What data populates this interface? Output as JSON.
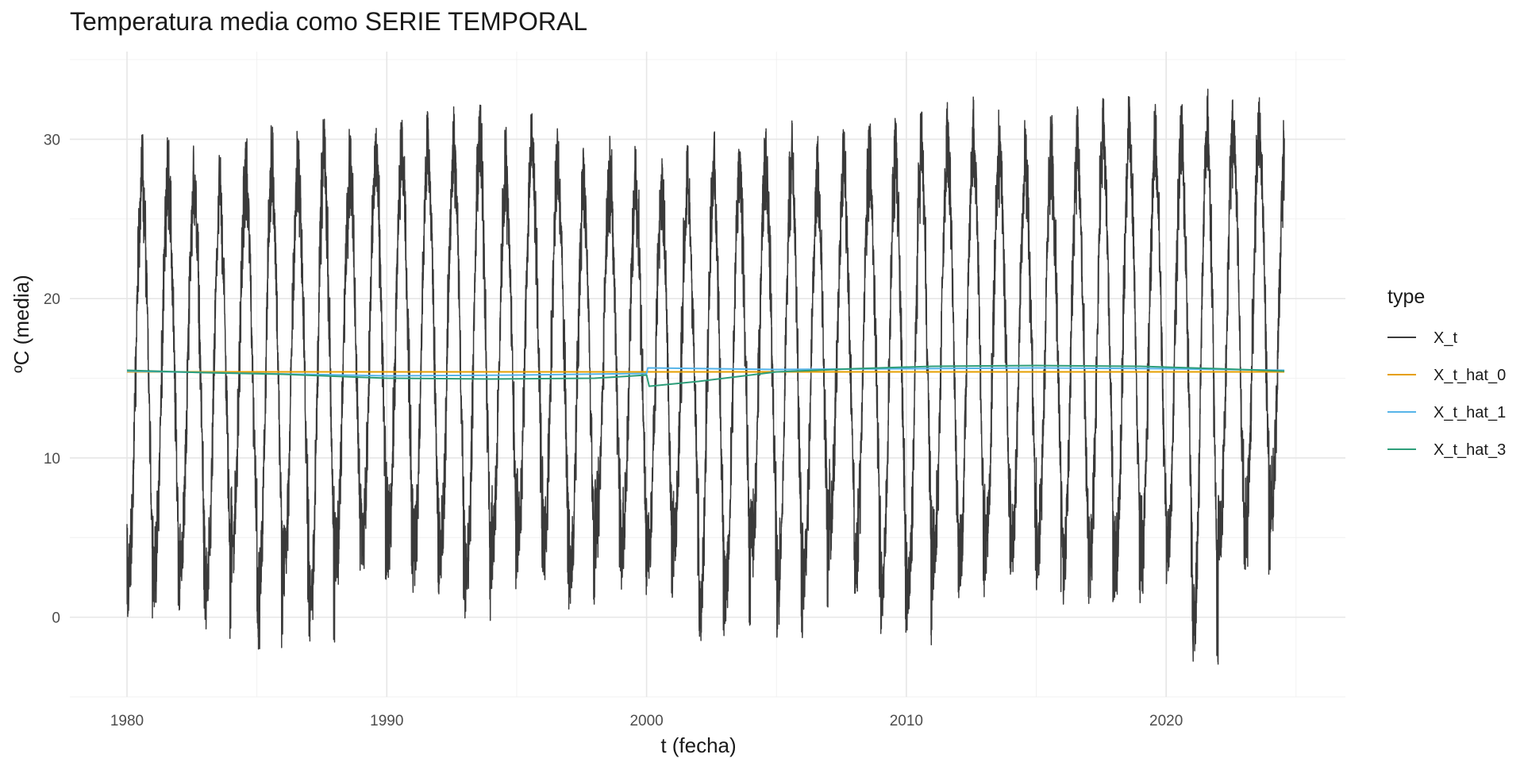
{
  "chart_data": {
    "type": "line",
    "title": "Temperatura media como SERIE TEMPORAL",
    "xlabel": "t (fecha)",
    "ylabel": "ºC (media)",
    "xlim": [
      1977.8,
      2026.9
    ],
    "ylim": [
      -5,
      35.5
    ],
    "x_ticks": [
      1980,
      1990,
      2000,
      2010,
      2020
    ],
    "x_tick_labels": [
      "1980",
      "1990",
      "2000",
      "2010",
      "2020"
    ],
    "y_ticks": [
      0,
      10,
      20,
      30
    ],
    "y_tick_labels": [
      "0",
      "10",
      "20",
      "30"
    ],
    "grid": true,
    "legend": {
      "title": "type",
      "position": "right",
      "entries": [
        "X_t",
        "X_t_hat_0",
        "X_t_hat_1",
        "X_t_hat_3"
      ]
    },
    "series": [
      {
        "name": "X_t",
        "color": "#3a3a3a",
        "kind": "seasonal_daily",
        "x_start": 1980.0,
        "x_end": 2024.55,
        "annual_peak_values": [
          30.4,
          30.1,
          30.0,
          29.0,
          30.2,
          30.9,
          30.6,
          31.5,
          31.0,
          31.2,
          31.4,
          32.1,
          32.1,
          32.4,
          30.8,
          32.3,
          30.9,
          29.6,
          30.3,
          29.8,
          29.4,
          29.6,
          30.6,
          30.4,
          31.4,
          31.2,
          30.3,
          30.6,
          31.1,
          31.3,
          31.7,
          32.3,
          32.8,
          32.0,
          31.2,
          31.6,
          32.1,
          32.8,
          32.7,
          32.2,
          32.3,
          33.4,
          33.4,
          33.0,
          32.6
        ],
        "annual_trough_values": [
          -0.2,
          0.3,
          0.4,
          -1.5,
          1.8,
          -2.0,
          0.9,
          -1.6,
          1.6,
          2.0,
          2.5,
          1.5,
          1.1,
          -0.2,
          1.6,
          2.8,
          1.8,
          0.0,
          2.5,
          1.3,
          0.6,
          2.1,
          -1.6,
          -0.8,
          1.6,
          -1.3,
          0.2,
          2.8,
          1.2,
          -1.4,
          -1.8,
          0.9,
          1.1,
          2.0,
          1.7,
          1.5,
          0.8,
          0.4,
          0.9,
          1.5,
          1.8,
          -3.4,
          2.2,
          2.7,
          4.3
        ],
        "values": []
      },
      {
        "name": "X_t_hat_0",
        "color": "#E69F00",
        "x": [
          1980.0,
          2024.55
        ],
        "values": [
          15.4,
          15.4
        ]
      },
      {
        "name": "X_t_hat_1",
        "color": "#56B4E9",
        "x": [
          1980.0,
          1985.0,
          1990.0,
          1995.0,
          2000.0,
          2000.05,
          2005.0,
          2010.0,
          2015.0,
          2020.0,
          2024.55
        ],
        "values": [
          15.45,
          15.3,
          15.15,
          15.2,
          15.3,
          15.65,
          15.55,
          15.6,
          15.65,
          15.6,
          15.5
        ]
      },
      {
        "name": "X_t_hat_3",
        "color": "#2E9E7A",
        "x": [
          1980.0,
          1983.0,
          1986.0,
          1990.0,
          1994.0,
          1998.0,
          2000.0,
          2000.1,
          2002.0,
          2005.0,
          2008.0,
          2011.0,
          2015.0,
          2019.0,
          2022.0,
          2024.55
        ],
        "values": [
          15.5,
          15.35,
          15.25,
          15.0,
          14.95,
          15.0,
          15.2,
          14.5,
          14.8,
          15.4,
          15.6,
          15.75,
          15.8,
          15.75,
          15.6,
          15.45
        ]
      }
    ]
  }
}
